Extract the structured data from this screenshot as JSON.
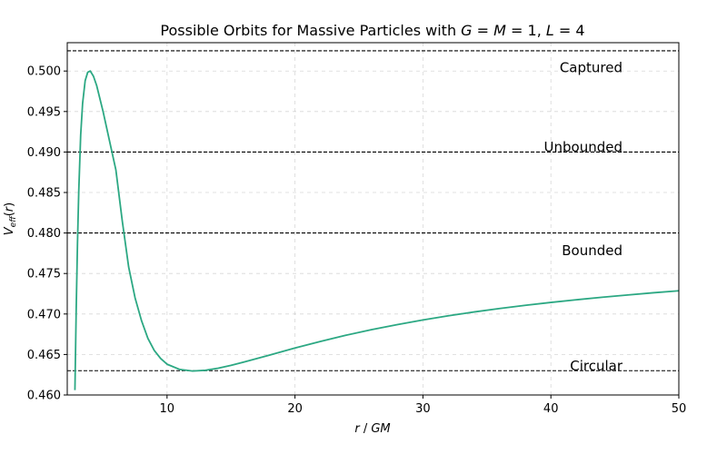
{
  "chart_data": {
    "type": "line",
    "title": "Possible Orbits for Massive Particles with G = M = 1,  L = 4",
    "title_parts": {
      "prefix": "Possible Orbits for Massive Particles with ",
      "G": "G",
      "M": "M",
      "eq_one": " = 1,  ",
      "L": "L",
      "eq_four": " = 4"
    },
    "xlabel": "r / GM",
    "xlabel_parts": {
      "r": "r",
      "sep": " / ",
      "GM": "GM"
    },
    "ylabel": "V_eff(r)",
    "ylabel_parts": {
      "V": "V",
      "sub": "eff",
      "open": "(",
      "r": "r",
      "close": ")"
    },
    "xlim": [
      2.2,
      50
    ],
    "ylim": [
      0.46,
      0.5035
    ],
    "x_ticks": [
      10,
      20,
      30,
      40,
      50
    ],
    "x_tick_labels": [
      "10",
      "20",
      "30",
      "40",
      "50"
    ],
    "y_ticks": [
      0.46,
      0.465,
      0.47,
      0.475,
      0.48,
      0.485,
      0.49,
      0.495,
      0.5
    ],
    "y_tick_labels": [
      "0.460",
      "0.465",
      "0.470",
      "0.475",
      "0.480",
      "0.485",
      "0.490",
      "0.495",
      "0.500"
    ],
    "grid": true,
    "curve": {
      "color": "#2ca883",
      "x": [
        2.8,
        2.9,
        3.0,
        3.1,
        3.25,
        3.4,
        3.6,
        3.8,
        4.0,
        4.25,
        4.5,
        5.0,
        5.5,
        6.0,
        6.5,
        7.0,
        7.5,
        8.0,
        8.5,
        9.0,
        9.5,
        10.0,
        11.0,
        12.0,
        13.0,
        14.0,
        15.0,
        16.0,
        18.0,
        20.0,
        22.0,
        24.0,
        26.0,
        28.0,
        30.0,
        32.0,
        34.0,
        36.0,
        38.0,
        40.0,
        42.0,
        44.0,
        46.0,
        48.0,
        50.0
      ],
      "y": [
        0.4606,
        0.4706,
        0.4787,
        0.4852,
        0.4921,
        0.496,
        0.4988,
        0.49985,
        0.5,
        0.49935,
        0.4982,
        0.495,
        0.4914,
        0.4878,
        0.4815,
        0.4758,
        0.472,
        0.4692,
        0.467,
        0.4655,
        0.4645,
        0.4638,
        0.46315,
        0.46296,
        0.46305,
        0.46331,
        0.46366,
        0.46406,
        0.46492,
        0.4658,
        0.46662,
        0.46738,
        0.46807,
        0.46869,
        0.46926,
        0.46978,
        0.47025,
        0.47068,
        0.47107,
        0.47143,
        0.47176,
        0.47207,
        0.47235,
        0.47262,
        0.47286
      ]
    },
    "levels": [
      {
        "name": "Captured",
        "y": 0.5025
      },
      {
        "name": "Unbounded",
        "y": 0.49
      },
      {
        "name": "Bounded",
        "y": 0.48
      },
      {
        "name": "Circular",
        "y": 0.463
      }
    ],
    "level_labels": [
      {
        "text": "Captured",
        "y": 0.5004
      },
      {
        "text": "Unbounded",
        "y": 0.4906
      },
      {
        "text": "Bounded",
        "y": 0.4778
      },
      {
        "text": "Circular",
        "y": 0.4636
      }
    ]
  }
}
